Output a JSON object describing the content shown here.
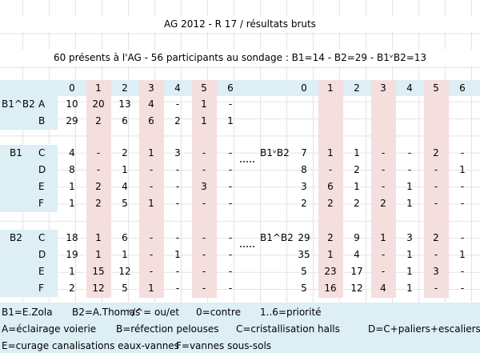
{
  "header": {
    "title": "AG 2012 - R 17 / résultats bruts",
    "subtitle": "60 présents à l'AG - 56 participants au sondage : B1=14 - B2=29 - B1ᵛB2=13"
  },
  "left": {
    "columns": [
      "0",
      "1",
      "2",
      "3",
      "4",
      "5",
      "6"
    ],
    "groups": [
      {
        "label": "B1^B2",
        "rows": [
          {
            "label": "A",
            "values": [
              "10",
              "20",
              "13",
              "4",
              "-",
              "1",
              "-"
            ]
          },
          {
            "label": "B",
            "values": [
              "29",
              "2",
              "6",
              "6",
              "2",
              "1",
              "1"
            ]
          }
        ]
      },
      {
        "label": "B1",
        "rows": [
          {
            "label": "C",
            "values": [
              "4",
              "-",
              "2",
              "1",
              "3",
              "-",
              "-"
            ]
          },
          {
            "label": "D",
            "values": [
              "8",
              "-",
              "1",
              "-",
              "-",
              "-",
              "-"
            ]
          },
          {
            "label": "E",
            "values": [
              "1",
              "2",
              "4",
              "-",
              "-",
              "3",
              "-"
            ]
          },
          {
            "label": "F",
            "values": [
              "1",
              "2",
              "5",
              "1",
              "-",
              "-",
              "-"
            ]
          }
        ]
      },
      {
        "label": "B2",
        "rows": [
          {
            "label": "C",
            "values": [
              "18",
              "1",
              "6",
              "-",
              "-",
              "-",
              "-"
            ]
          },
          {
            "label": "D",
            "values": [
              "19",
              "1",
              "1",
              "-",
              "1",
              "-",
              "-"
            ]
          },
          {
            "label": "E",
            "values": [
              "1",
              "15",
              "12",
              "-",
              "-",
              "-",
              "-"
            ]
          },
          {
            "label": "F",
            "values": [
              "2",
              "12",
              "5",
              "1",
              "-",
              "-",
              "-"
            ]
          }
        ]
      }
    ]
  },
  "right": {
    "columns": [
      "0",
      "1",
      "2",
      "3",
      "4",
      "5",
      "6"
    ],
    "groups": [
      {
        "label": "B1ᵛB2",
        "rows": [
          {
            "values": [
              "7",
              "1",
              "1",
              "-",
              "-",
              "2",
              "-"
            ]
          },
          {
            "values": [
              "8",
              "-",
              "2",
              "-",
              "-",
              "-",
              "1"
            ]
          },
          {
            "values": [
              "3",
              "6",
              "1",
              "-",
              "1",
              "-",
              "-"
            ]
          },
          {
            "values": [
              "2",
              "2",
              "2",
              "2",
              "1",
              "-",
              "-"
            ]
          }
        ]
      },
      {
        "label": "B1^B2",
        "rows": [
          {
            "values": [
              "29",
              "2",
              "9",
              "1",
              "3",
              "2",
              "-"
            ]
          },
          {
            "values": [
              "35",
              "1",
              "4",
              "-",
              "1",
              "-",
              "1"
            ]
          },
          {
            "values": [
              "5",
              "23",
              "17",
              "-",
              "1",
              "3",
              "-"
            ]
          },
          {
            "values": [
              "5",
              "16",
              "12",
              "4",
              "1",
              "-",
              "-"
            ]
          }
        ]
      }
    ]
  },
  "legend": [
    [
      "B1=E.Zola",
      "B2=A.Thomas",
      "ᵛ/^= ou/et",
      "0=contre",
      "1..6=priorité"
    ],
    [
      "A=éclairage voierie",
      "B=réfection pelouses",
      "C=cristallisation halls",
      "D=C+paliers+escaliers"
    ],
    [
      "E=curage canalisations eaux-vannes",
      "F=vannes sous-sols"
    ]
  ]
}
